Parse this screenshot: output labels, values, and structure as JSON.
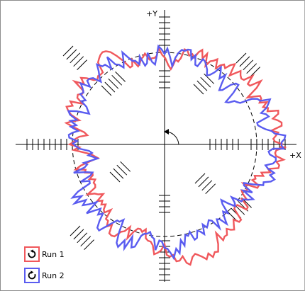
{
  "axes": {
    "y_label": "+Y",
    "x_label": "+X"
  },
  "colors": {
    "run1": "#f0585c",
    "run2": "#5a5cf0",
    "axis": "#000000",
    "hatch": "#000000"
  },
  "legend": [
    {
      "label": "Run 1",
      "icon": "rotate-clockwise-icon",
      "color": "#f0585c"
    },
    {
      "label": "Run 2",
      "icon": "rotate-counterclockwise-icon",
      "color": "#5a5cf0"
    }
  ]
}
